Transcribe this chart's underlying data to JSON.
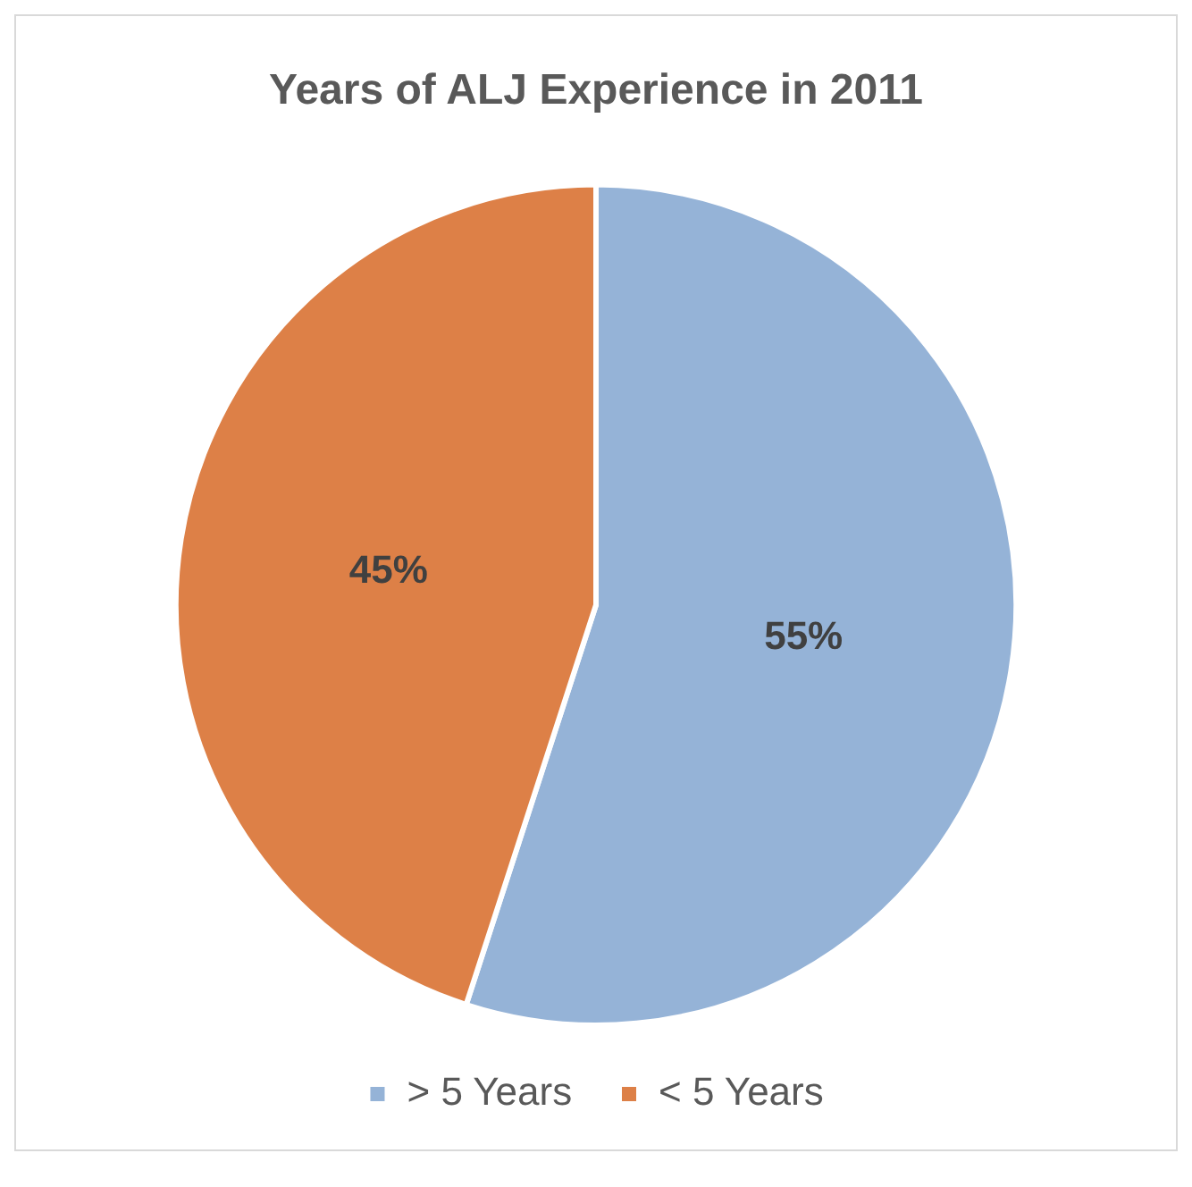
{
  "chart_data": {
    "type": "pie",
    "title": "Years of ALJ Experience in 2011",
    "categories": [
      "> 5 Years",
      "< 5 Years"
    ],
    "values": [
      55,
      45
    ],
    "colors": [
      "#95b3d7",
      "#dd8047"
    ],
    "value_labels": [
      "55%",
      "45%"
    ],
    "legend": "bottom"
  }
}
